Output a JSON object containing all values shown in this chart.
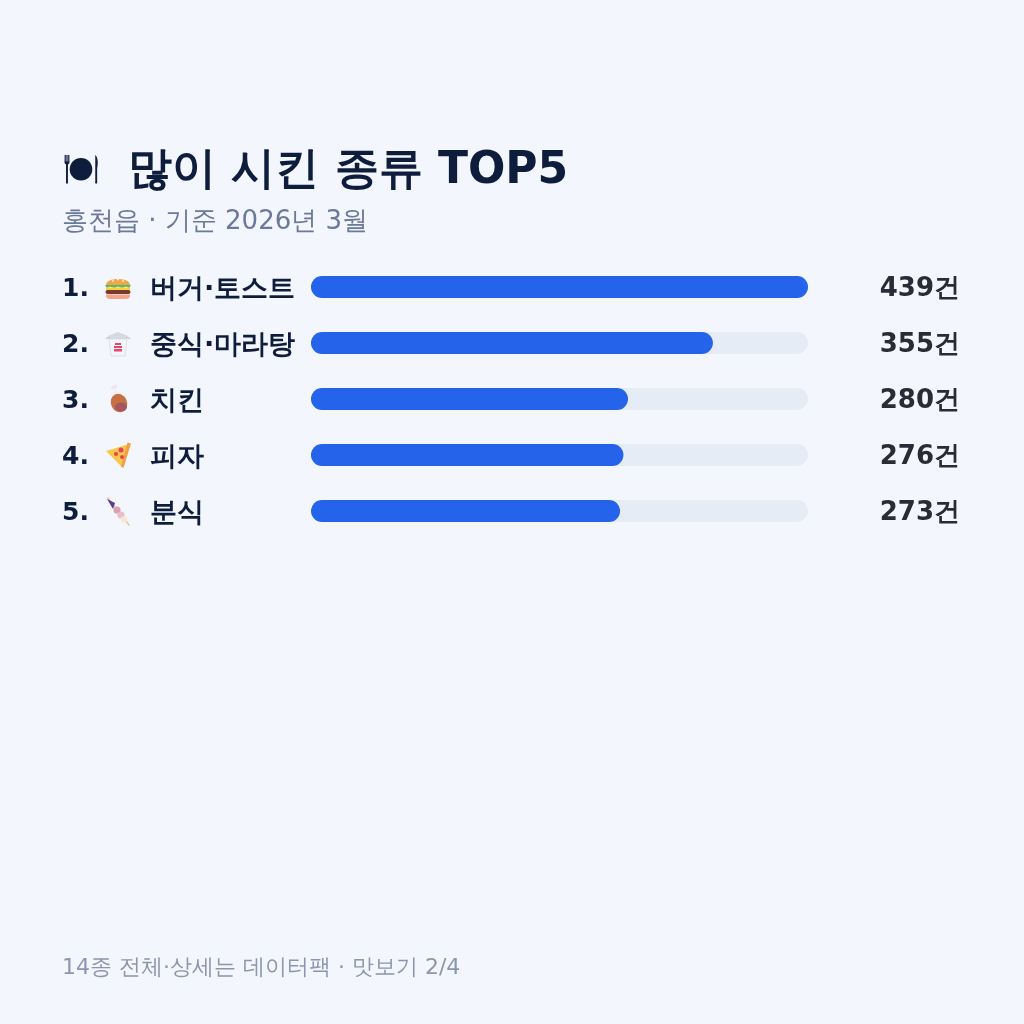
{
  "chart_data": {
    "type": "bar",
    "orientation": "horizontal",
    "title": "많이 시킨 종류 TOP5",
    "subtitle": "홍천읍 · 기준 2026년 3월",
    "categories": [
      "1. 버거·토스트",
      "2. 중식·마라탕",
      "3. 치킨",
      "4. 피자",
      "5. 분식"
    ],
    "values": [
      439,
      355,
      280,
      276,
      273
    ],
    "value_labels": [
      "439건",
      "355건",
      "280건",
      "276건",
      "273건"
    ],
    "color": "#2563eb",
    "annotations": [
      "14종 전체·상세는 데이터팩 · 맛보기 2/4"
    ]
  }
}
